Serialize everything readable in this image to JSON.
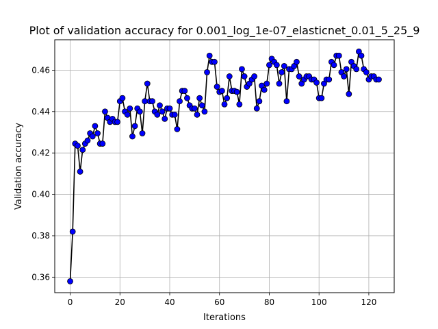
{
  "chart_data": {
    "type": "line",
    "title": "Plot of validation accuracy for 0.001_log_1e-07_elasticnet_0.01_5_25_9",
    "xlabel": "Iterations",
    "ylabel": "Validation accuracy",
    "xlim": [
      -6.2,
      130.2
    ],
    "ylim": [
      0.3525,
      0.4747
    ],
    "xticks": [
      0,
      20,
      40,
      60,
      80,
      100,
      120
    ],
    "yticks": [
      0.36,
      0.38,
      0.4,
      0.42,
      0.44,
      0.46
    ],
    "xtick_labels": [
      "0",
      "20",
      "40",
      "60",
      "80",
      "100",
      "120"
    ],
    "ytick_labels": [
      "0.36",
      "0.38",
      "0.40",
      "0.42",
      "0.44",
      "0.46"
    ],
    "grid": true,
    "line_color": "#000000",
    "marker_color": "#0000ff",
    "series": [
      {
        "name": "validation accuracy",
        "x": [
          0,
          1,
          2,
          3,
          4,
          5,
          6,
          7,
          8,
          9,
          10,
          11,
          12,
          13,
          14,
          15,
          16,
          17,
          18,
          19,
          20,
          21,
          22,
          23,
          24,
          25,
          26,
          27,
          28,
          29,
          30,
          31,
          32,
          33,
          34,
          35,
          36,
          37,
          38,
          39,
          40,
          41,
          42,
          43,
          44,
          45,
          46,
          47,
          48,
          49,
          50,
          51,
          52,
          53,
          54,
          55,
          56,
          57,
          58,
          59,
          60,
          61,
          62,
          63,
          64,
          65,
          66,
          67,
          68,
          69,
          70,
          71,
          72,
          73,
          74,
          75,
          76,
          77,
          78,
          79,
          80,
          81,
          82,
          83,
          84,
          85,
          86,
          87,
          88,
          89,
          90,
          91,
          92,
          93,
          94,
          95,
          96,
          97,
          98,
          99,
          100,
          101,
          102,
          103,
          104,
          105,
          106,
          107,
          108,
          109,
          110,
          111,
          112,
          113,
          114,
          115,
          116,
          117,
          118,
          119,
          120,
          121,
          122,
          123,
          124
        ],
        "values": [
          0.358,
          0.382,
          0.4245,
          0.4235,
          0.411,
          0.4215,
          0.4245,
          0.426,
          0.4295,
          0.428,
          0.433,
          0.4295,
          0.4245,
          0.4245,
          0.44,
          0.437,
          0.435,
          0.4365,
          0.435,
          0.435,
          0.445,
          0.4465,
          0.44,
          0.4385,
          0.4415,
          0.428,
          0.433,
          0.4415,
          0.44,
          0.4295,
          0.445,
          0.4535,
          0.445,
          0.445,
          0.44,
          0.4385,
          0.443,
          0.44,
          0.4365,
          0.4415,
          0.4415,
          0.4385,
          0.4385,
          0.4315,
          0.445,
          0.45,
          0.45,
          0.4465,
          0.443,
          0.4415,
          0.4415,
          0.4385,
          0.4465,
          0.443,
          0.44,
          0.459,
          0.467,
          0.464,
          0.464,
          0.452,
          0.4495,
          0.45,
          0.4435,
          0.4465,
          0.457,
          0.45,
          0.45,
          0.4495,
          0.4435,
          0.4605,
          0.457,
          0.452,
          0.4535,
          0.4555,
          0.457,
          0.4415,
          0.445,
          0.4525,
          0.4505,
          0.4535,
          0.4625,
          0.4655,
          0.464,
          0.4625,
          0.4535,
          0.459,
          0.462,
          0.445,
          0.4605,
          0.4605,
          0.462,
          0.464,
          0.457,
          0.4535,
          0.4555,
          0.457,
          0.457,
          0.4555,
          0.4555,
          0.454,
          0.4465,
          0.4465,
          0.4535,
          0.4555,
          0.4555,
          0.464,
          0.4625,
          0.467,
          0.467,
          0.459,
          0.457,
          0.4605,
          0.4485,
          0.464,
          0.462,
          0.4605,
          0.469,
          0.467,
          0.4605,
          0.459,
          0.4555,
          0.457,
          0.457,
          0.4555,
          0.4555
        ]
      }
    ]
  }
}
